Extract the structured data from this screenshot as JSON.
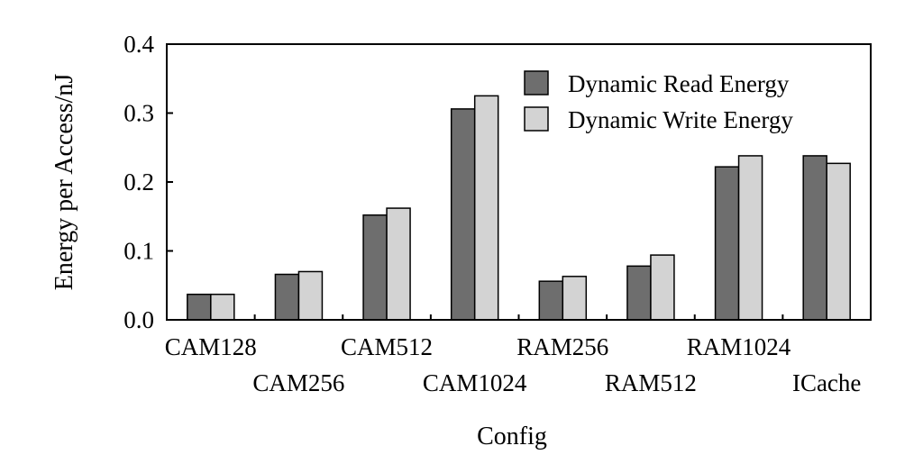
{
  "chart_data": {
    "type": "bar",
    "categories": [
      "CAM128",
      "CAM256",
      "CAM512",
      "CAM1024",
      "RAM256",
      "RAM512",
      "RAM1024",
      "ICache"
    ],
    "series": [
      {
        "name": "Dynamic Read Energy",
        "values": [
          0.037,
          0.066,
          0.152,
          0.306,
          0.056,
          0.078,
          0.222,
          0.238
        ],
        "color": "#6e6e6e"
      },
      {
        "name": "Dynamic Write Energy",
        "values": [
          0.037,
          0.07,
          0.162,
          0.325,
          0.063,
          0.094,
          0.238,
          0.227
        ],
        "color": "#d3d3d3"
      }
    ],
    "yticks": [
      "0.0",
      "0.1",
      "0.2",
      "0.3",
      "0.4"
    ],
    "ylim": [
      0,
      0.4
    ],
    "xlabel": "Config",
    "ylabel": "Energy per Access/nJ",
    "legend_position": "top-right",
    "grid": false
  }
}
